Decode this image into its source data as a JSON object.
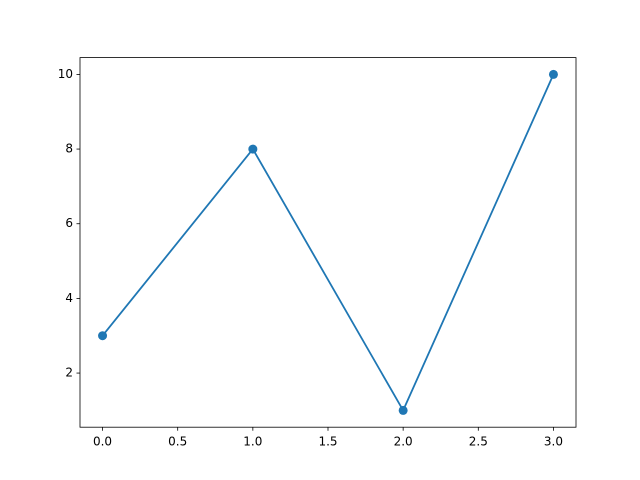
{
  "chart_data": {
    "type": "line",
    "x": [
      0,
      1,
      2,
      3
    ],
    "series": [
      {
        "color": "#1f77b4",
        "values": [
          3,
          8,
          1,
          10
        ]
      }
    ],
    "xlim": [
      -0.15,
      3.15
    ],
    "xticks": [
      {
        "value": 0,
        "label": "0.0"
      },
      {
        "value": 0.5,
        "label": "0.5"
      },
      {
        "value": 1,
        "label": "1.0"
      },
      {
        "value": 1.5,
        "label": "1.5"
      },
      {
        "value": 2,
        "label": "2.0"
      },
      {
        "value": 2.5,
        "label": "2.5"
      },
      {
        "value": 3,
        "label": "3.0"
      }
    ],
    "ylim": [
      0.55,
      10.45
    ],
    "yticks": [
      2,
      4,
      6,
      8,
      10
    ],
    "grid": false,
    "markers": true
  }
}
